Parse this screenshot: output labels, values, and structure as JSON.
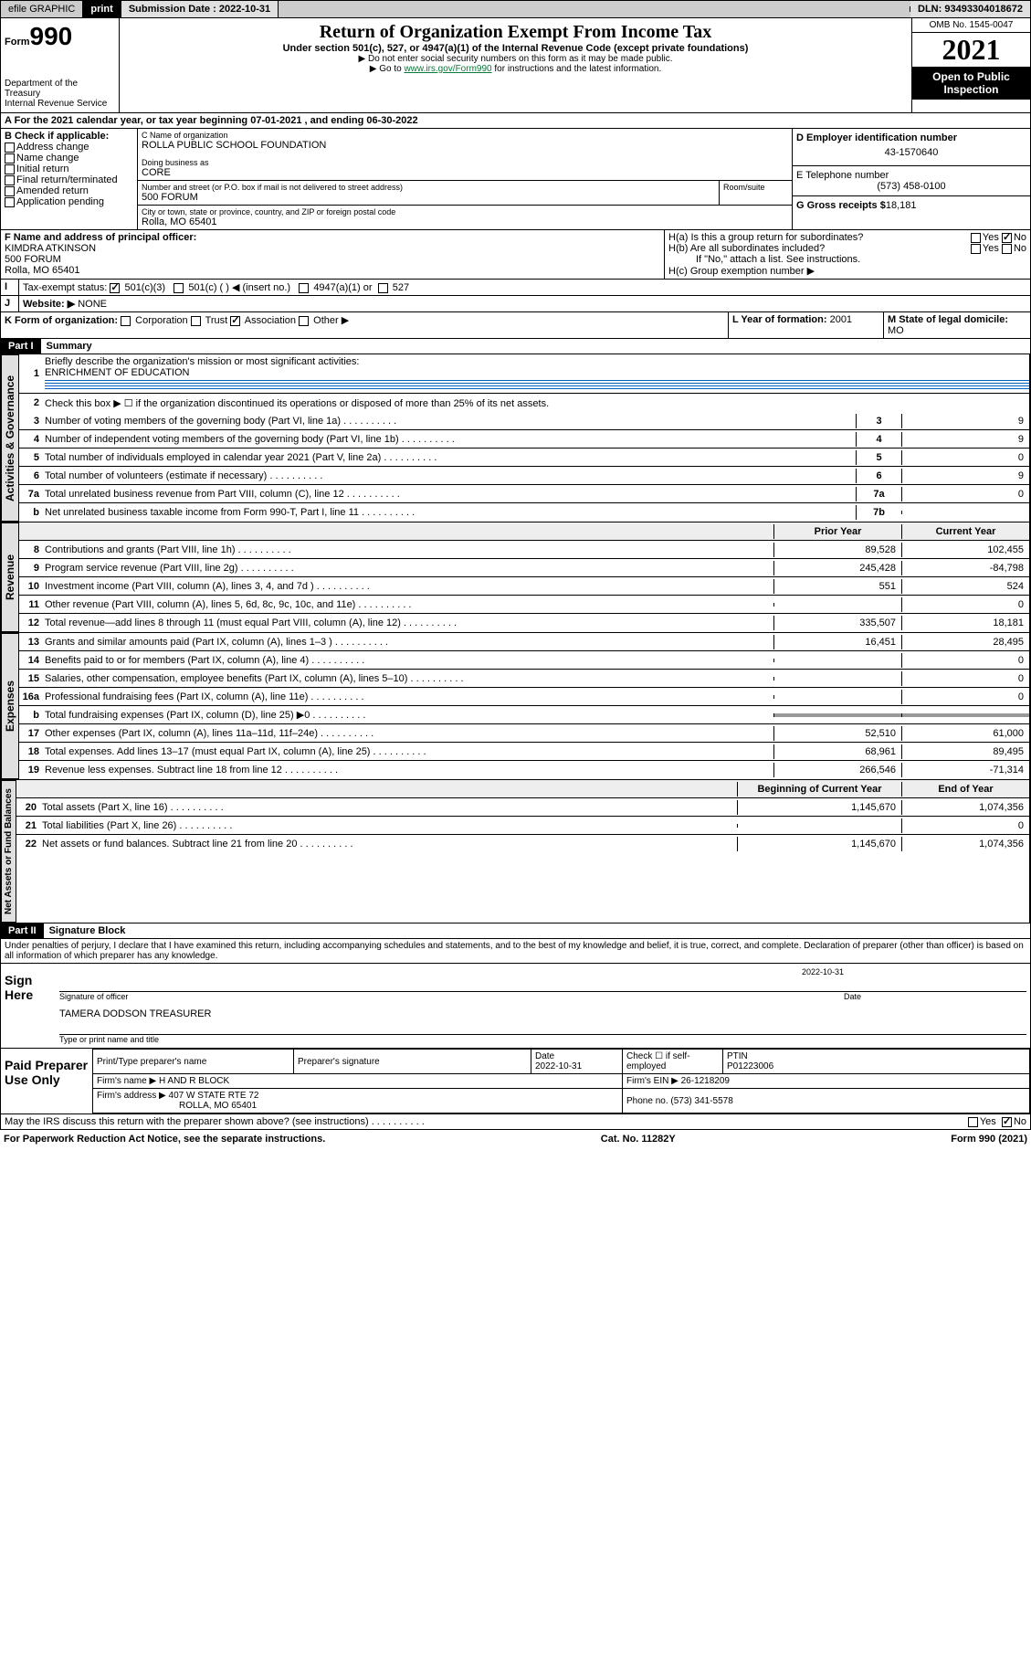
{
  "topbar": {
    "efile": "efile GRAPHIC",
    "print": "print",
    "sub_label": "Submission Date :",
    "sub_date": "2022-10-31",
    "dln_label": "DLN:",
    "dln": "93493304018672"
  },
  "header": {
    "form_prefix": "Form",
    "form_num": "990",
    "dept": "Department of the Treasury",
    "irs": "Internal Revenue Service",
    "title": "Return of Organization Exempt From Income Tax",
    "subtitle": "Under section 501(c), 527, or 4947(a)(1) of the Internal Revenue Code (except private foundations)",
    "note1": "▶ Do not enter social security numbers on this form as it may be made public.",
    "note2_pre": "▶ Go to ",
    "note2_link": "www.irs.gov/Form990",
    "note2_post": " for instructions and the latest information.",
    "omb": "OMB No. 1545-0047",
    "year": "2021",
    "open": "Open to Public Inspection"
  },
  "line_a": {
    "text": "For the 2021 calendar year, or tax year beginning ",
    "begin": "07-01-2021",
    "mid": " , and ending ",
    "end": "06-30-2022"
  },
  "section_b": {
    "label": "B Check if applicable:",
    "addr": "Address change",
    "name": "Name change",
    "init": "Initial return",
    "final": "Final return/terminated",
    "amend": "Amended return",
    "app": "Application pending"
  },
  "section_c": {
    "label": "C Name of organization",
    "org": "ROLLA PUBLIC SCHOOL FOUNDATION",
    "dba_label": "Doing business as",
    "dba": "CORE",
    "addr_label": "Number and street (or P.O. box if mail is not delivered to street address)",
    "addr": "500 FORUM",
    "room_label": "Room/suite",
    "city_label": "City or town, state or province, country, and ZIP or foreign postal code",
    "city": "Rolla, MO  65401"
  },
  "section_d": {
    "label": "D Employer identification number",
    "ein": "43-1570640"
  },
  "section_e": {
    "label": "E Telephone number",
    "phone": "(573) 458-0100"
  },
  "section_g": {
    "label": "G Gross receipts $",
    "amount": "18,181"
  },
  "section_f": {
    "label": "F Name and address of principal officer:",
    "name": "KIMDRA ATKINSON",
    "addr1": "500 FORUM",
    "addr2": "Rolla, MO  65401"
  },
  "section_h": {
    "ha": "H(a)  Is this a group return for subordinates?",
    "hb": "H(b)  Are all subordinates included?",
    "hb_note": "If \"No,\" attach a list. See instructions.",
    "hc": "H(c)  Group exemption number ▶",
    "yes": "Yes",
    "no": "No"
  },
  "section_i": {
    "label": "Tax-exempt status:",
    "c3": "501(c)(3)",
    "c": "501(c) (  ) ◀ (insert no.)",
    "a1": "4947(a)(1) or",
    "527": "527"
  },
  "section_j": {
    "label": "Website: ▶",
    "val": "NONE"
  },
  "section_k": {
    "label": "K Form of organization:",
    "corp": "Corporation",
    "trust": "Trust",
    "assoc": "Association",
    "other": "Other ▶"
  },
  "section_l": {
    "label": "L Year of formation:",
    "val": "2001"
  },
  "section_m": {
    "label": "M State of legal domicile:",
    "val": "MO"
  },
  "part1": {
    "header": "Part I",
    "title": "Summary",
    "line1_label": "Briefly describe the organization's mission or most significant activities:",
    "line1_val": "ENRICHMENT OF EDUCATION",
    "line2": "Check this box ▶ ☐ if the organization discontinued its operations or disposed of more than 25% of its net assets.",
    "tabs": {
      "gov": "Activities & Governance",
      "rev": "Revenue",
      "exp": "Expenses",
      "net": "Net Assets or Fund Balances"
    },
    "col_prior": "Prior Year",
    "col_current": "Current Year",
    "col_boy": "Beginning of Current Year",
    "col_eoy": "End of Year",
    "lines_gov": [
      {
        "n": "3",
        "d": "Number of voting members of the governing body (Part VI, line 1a)",
        "c": "3",
        "v": "9"
      },
      {
        "n": "4",
        "d": "Number of independent voting members of the governing body (Part VI, line 1b)",
        "c": "4",
        "v": "9"
      },
      {
        "n": "5",
        "d": "Total number of individuals employed in calendar year 2021 (Part V, line 2a)",
        "c": "5",
        "v": "0"
      },
      {
        "n": "6",
        "d": "Total number of volunteers (estimate if necessary)",
        "c": "6",
        "v": "9"
      },
      {
        "n": "7a",
        "d": "Total unrelated business revenue from Part VIII, column (C), line 12",
        "c": "7a",
        "v": "0"
      },
      {
        "n": "b",
        "d": "Net unrelated business taxable income from Form 990-T, Part I, line 11",
        "c": "7b",
        "v": ""
      }
    ],
    "lines_rev": [
      {
        "n": "8",
        "d": "Contributions and grants (Part VIII, line 1h)",
        "p": "89,528",
        "c": "102,455"
      },
      {
        "n": "9",
        "d": "Program service revenue (Part VIII, line 2g)",
        "p": "245,428",
        "c": "-84,798"
      },
      {
        "n": "10",
        "d": "Investment income (Part VIII, column (A), lines 3, 4, and 7d )",
        "p": "551",
        "c": "524"
      },
      {
        "n": "11",
        "d": "Other revenue (Part VIII, column (A), lines 5, 6d, 8c, 9c, 10c, and 11e)",
        "p": "",
        "c": "0"
      },
      {
        "n": "12",
        "d": "Total revenue—add lines 8 through 11 (must equal Part VIII, column (A), line 12)",
        "p": "335,507",
        "c": "18,181"
      }
    ],
    "lines_exp": [
      {
        "n": "13",
        "d": "Grants and similar amounts paid (Part IX, column (A), lines 1–3 )",
        "p": "16,451",
        "c": "28,495"
      },
      {
        "n": "14",
        "d": "Benefits paid to or for members (Part IX, column (A), line 4)",
        "p": "",
        "c": "0"
      },
      {
        "n": "15",
        "d": "Salaries, other compensation, employee benefits (Part IX, column (A), lines 5–10)",
        "p": "",
        "c": "0"
      },
      {
        "n": "16a",
        "d": "Professional fundraising fees (Part IX, column (A), line 11e)",
        "p": "",
        "c": "0"
      },
      {
        "n": "b",
        "d": "Total fundraising expenses (Part IX, column (D), line 25) ▶0",
        "p": "shaded",
        "c": "shaded"
      },
      {
        "n": "17",
        "d": "Other expenses (Part IX, column (A), lines 11a–11d, 11f–24e)",
        "p": "52,510",
        "c": "61,000"
      },
      {
        "n": "18",
        "d": "Total expenses. Add lines 13–17 (must equal Part IX, column (A), line 25)",
        "p": "68,961",
        "c": "89,495"
      },
      {
        "n": "19",
        "d": "Revenue less expenses. Subtract line 18 from line 12",
        "p": "266,546",
        "c": "-71,314"
      }
    ],
    "lines_net": [
      {
        "n": "20",
        "d": "Total assets (Part X, line 16)",
        "p": "1,145,670",
        "c": "1,074,356"
      },
      {
        "n": "21",
        "d": "Total liabilities (Part X, line 26)",
        "p": "",
        "c": "0"
      },
      {
        "n": "22",
        "d": "Net assets or fund balances. Subtract line 21 from line 20",
        "p": "1,145,670",
        "c": "1,074,356"
      }
    ]
  },
  "part2": {
    "header": "Part II",
    "title": "Signature Block",
    "decl": "Under penalties of perjury, I declare that I have examined this return, including accompanying schedules and statements, and to the best of my knowledge and belief, it is true, correct, and complete. Declaration of preparer (other than officer) is based on all information of which preparer has any knowledge.",
    "sign_here": "Sign Here",
    "sig_officer": "Signature of officer",
    "date": "Date",
    "sig_date": "2022-10-31",
    "officer_name": "TAMERA DODSON TREASURER",
    "type_name": "Type or print name and title",
    "paid_prep": "Paid Preparer Use Only",
    "prep_name_label": "Print/Type preparer's name",
    "prep_sig_label": "Preparer's signature",
    "prep_date_label": "Date",
    "prep_date": "2022-10-31",
    "check_label": "Check ☐ if self-employed",
    "ptin_label": "PTIN",
    "ptin": "P01223006",
    "firm_name_label": "Firm's name   ▶",
    "firm_name": "H AND R BLOCK",
    "firm_ein_label": "Firm's EIN ▶",
    "firm_ein": "26-1218209",
    "firm_addr_label": "Firm's address ▶",
    "firm_addr1": "407 W STATE RTE 72",
    "firm_addr2": "ROLLA, MO  65401",
    "phone_label": "Phone no.",
    "phone": "(573) 341-5578",
    "may_irs": "May the IRS discuss this return with the preparer shown above? (see instructions)",
    "yes": "Yes",
    "no": "No"
  },
  "footer": {
    "left": "For Paperwork Reduction Act Notice, see the separate instructions.",
    "mid": "Cat. No. 11282Y",
    "right": "Form 990 (2021)"
  }
}
